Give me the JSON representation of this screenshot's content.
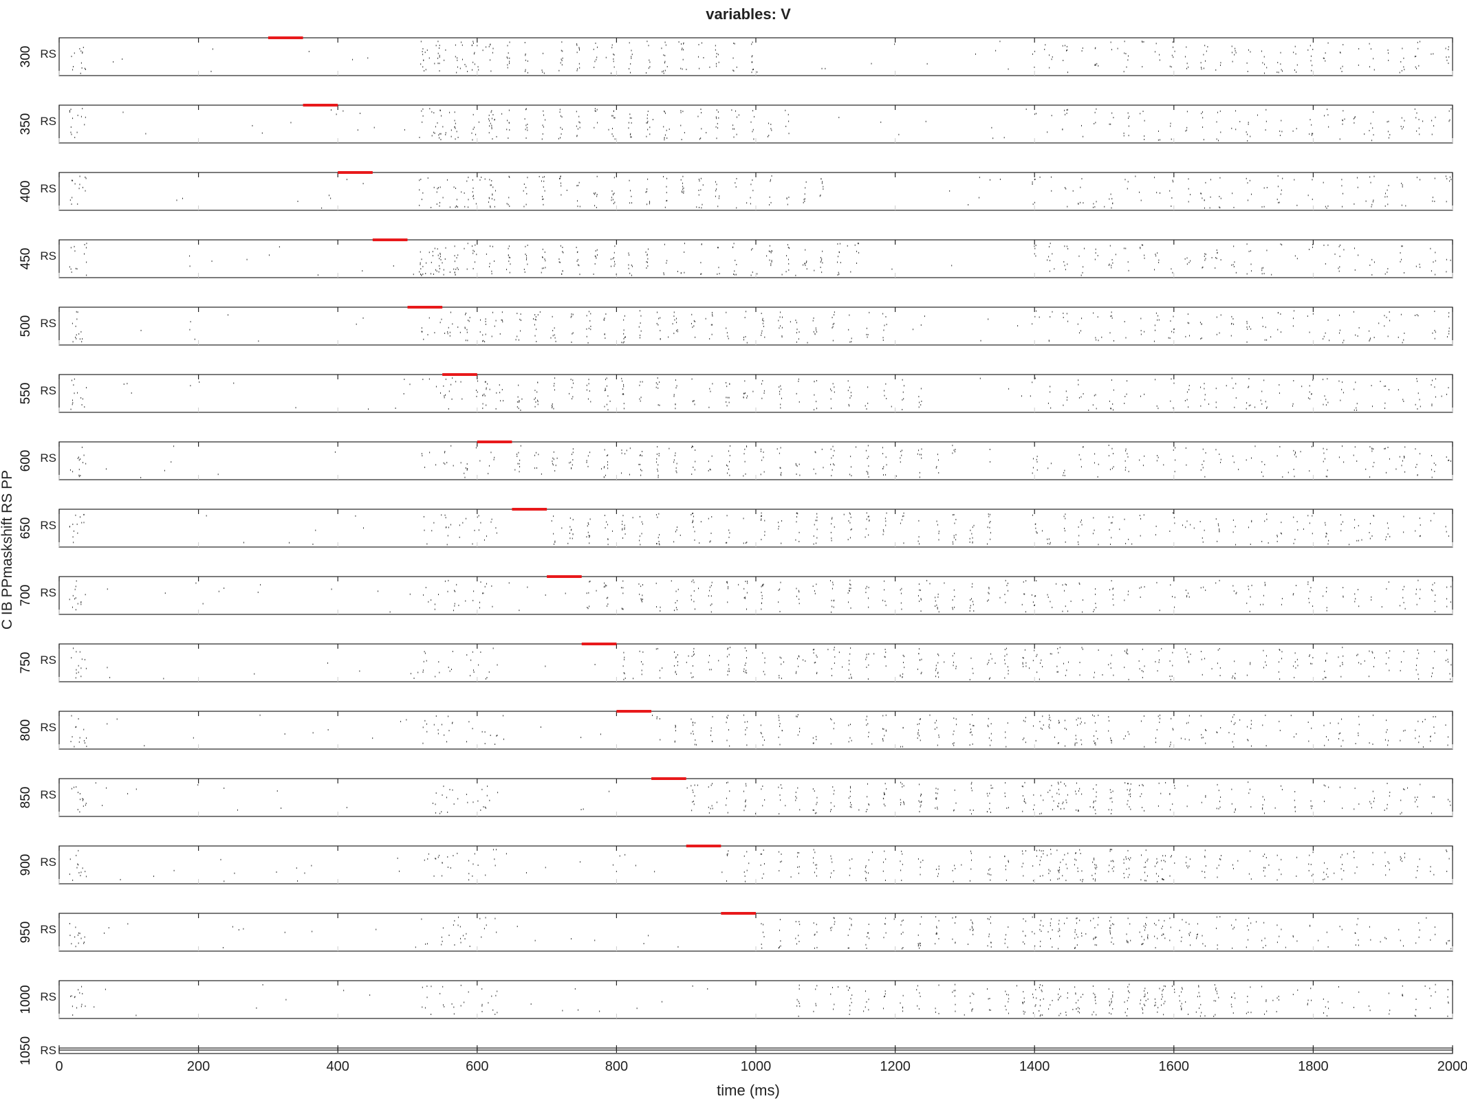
{
  "chart_data": {
    "type": "scatter",
    "title": "variables: V",
    "xlabel": "time (ms)",
    "ylabel": "C IB PPmaskshift RS PP",
    "xlim": [
      0,
      2000
    ],
    "xticks": [
      0,
      200,
      400,
      600,
      800,
      1000,
      1200,
      1400,
      1600,
      1800,
      2000
    ],
    "panel_label": "RS",
    "marker_color": "#333333",
    "stimulus_color": "#e8191b",
    "panels": [
      {
        "maskshift": 300,
        "stimulus_window": [
          300,
          350
        ]
      },
      {
        "maskshift": 350,
        "stimulus_window": [
          350,
          400
        ]
      },
      {
        "maskshift": 400,
        "stimulus_window": [
          400,
          450
        ]
      },
      {
        "maskshift": 450,
        "stimulus_window": [
          450,
          500
        ]
      },
      {
        "maskshift": 500,
        "stimulus_window": [
          500,
          550
        ]
      },
      {
        "maskshift": 550,
        "stimulus_window": [
          550,
          600
        ]
      },
      {
        "maskshift": 600,
        "stimulus_window": [
          600,
          650
        ]
      },
      {
        "maskshift": 650,
        "stimulus_window": [
          650,
          700
        ]
      },
      {
        "maskshift": 700,
        "stimulus_window": [
          700,
          750
        ]
      },
      {
        "maskshift": 750,
        "stimulus_window": [
          750,
          800
        ]
      },
      {
        "maskshift": 800,
        "stimulus_window": [
          800,
          850
        ]
      },
      {
        "maskshift": 850,
        "stimulus_window": [
          850,
          900
        ]
      },
      {
        "maskshift": 900,
        "stimulus_window": [
          900,
          950
        ]
      },
      {
        "maskshift": 950,
        "stimulus_window": [
          950,
          1000
        ]
      },
      {
        "maskshift": 1000,
        "stimulus_window": null
      },
      {
        "maskshift": 1050,
        "stimulus_window": null
      }
    ]
  }
}
